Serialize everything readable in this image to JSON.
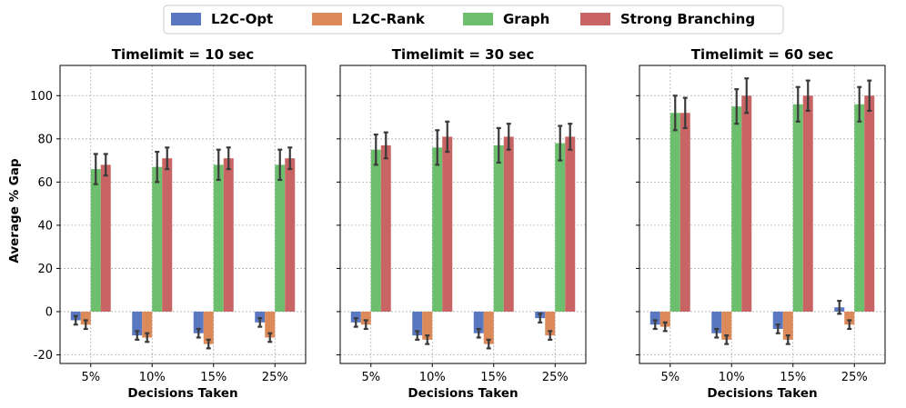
{
  "chart_data": {
    "type": "bar",
    "legend": {
      "placement": "top-center",
      "entries": [
        {
          "name": "L2C-Opt",
          "color": "#5a78c2"
        },
        {
          "name": "L2C-Rank",
          "color": "#dc8a5a"
        },
        {
          "name": "Graph",
          "color": "#6dbf6d"
        },
        {
          "name": "Strong Branching",
          "color": "#c86464"
        }
      ]
    },
    "xlabel": "Decisions Taken",
    "ylabel": "Average % Gap",
    "ylim": [
      -24,
      114
    ],
    "yticks": [
      -20,
      0,
      20,
      40,
      60,
      80,
      100
    ],
    "grid": true,
    "categories": [
      "5%",
      "10%",
      "15%",
      "25%"
    ],
    "panels": [
      {
        "title": "Timelimit = 10 sec",
        "series": [
          {
            "name": "L2C-Opt",
            "values": [
              -4,
              -11,
              -10,
              -5
            ],
            "errors": [
              2,
              2,
              2,
              2
            ]
          },
          {
            "name": "L2C-Rank",
            "values": [
              -6,
              -12,
              -15,
              -12
            ],
            "errors": [
              2,
              2,
              2,
              2
            ]
          },
          {
            "name": "Graph",
            "values": [
              66,
              67,
              68,
              68
            ],
            "errors": [
              7,
              7,
              7,
              7
            ]
          },
          {
            "name": "Strong Branching",
            "values": [
              68,
              71,
              71,
              71
            ],
            "errors": [
              5,
              5,
              5,
              5
            ]
          }
        ]
      },
      {
        "title": "Timelimit = 30 sec",
        "series": [
          {
            "name": "L2C-Opt",
            "values": [
              -5,
              -11,
              -10,
              -3
            ],
            "errors": [
              2,
              2,
              2,
              2
            ]
          },
          {
            "name": "L2C-Rank",
            "values": [
              -6,
              -13,
              -15,
              -11
            ],
            "errors": [
              2,
              2,
              2,
              2
            ]
          },
          {
            "name": "Graph",
            "values": [
              75,
              76,
              77,
              78
            ],
            "errors": [
              7,
              8,
              8,
              8
            ]
          },
          {
            "name": "Strong Branching",
            "values": [
              77,
              81,
              81,
              81
            ],
            "errors": [
              6,
              7,
              6,
              6
            ]
          }
        ]
      },
      {
        "title": "Timelimit = 60 sec",
        "series": [
          {
            "name": "L2C-Opt",
            "values": [
              -6,
              -10,
              -8,
              2
            ],
            "errors": [
              2,
              2,
              2,
              3
            ]
          },
          {
            "name": "L2C-Rank",
            "values": [
              -7,
              -13,
              -13,
              -6
            ],
            "errors": [
              2,
              2,
              2,
              2
            ]
          },
          {
            "name": "Graph",
            "values": [
              92,
              95,
              96,
              96
            ],
            "errors": [
              8,
              8,
              8,
              8
            ]
          },
          {
            "name": "Strong Branching",
            "values": [
              92,
              100,
              100,
              100
            ],
            "errors": [
              7,
              8,
              7,
              7
            ]
          }
        ]
      }
    ]
  }
}
